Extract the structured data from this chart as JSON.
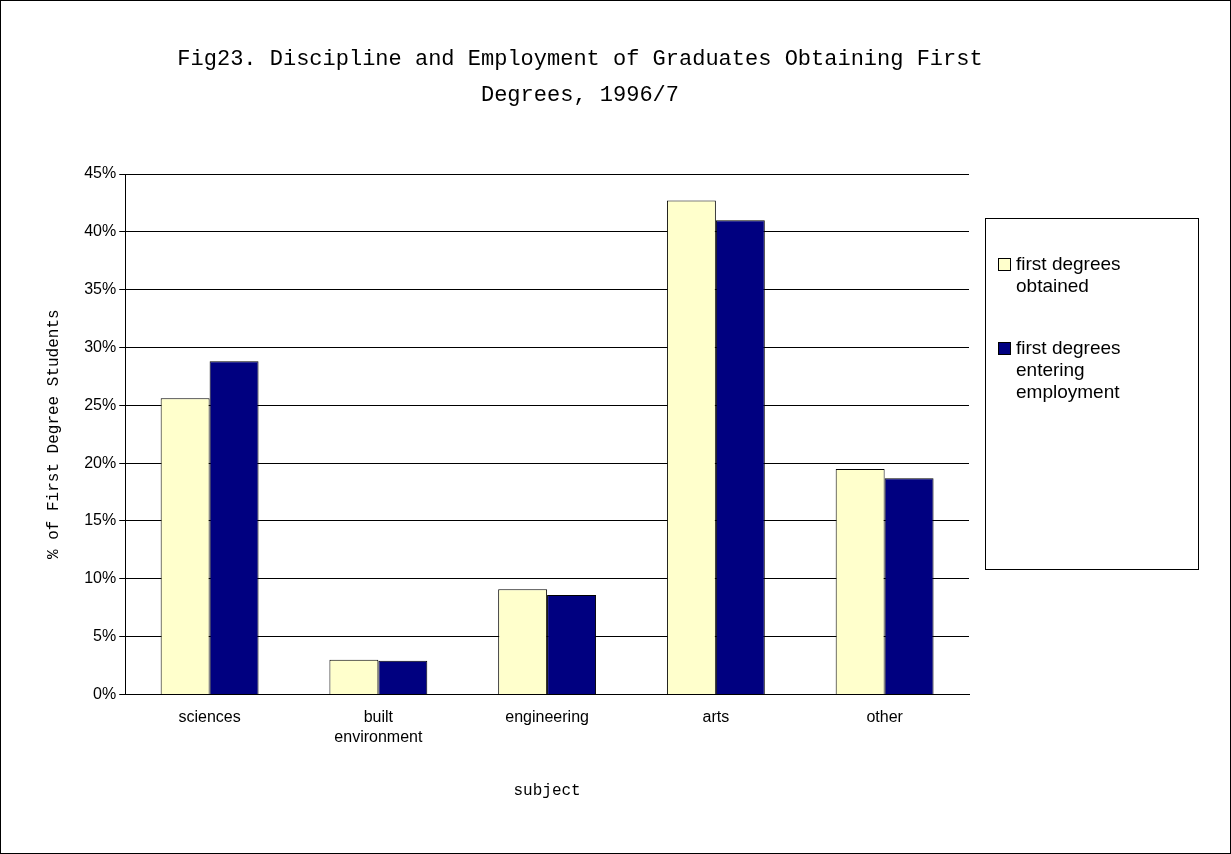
{
  "chart_data": {
    "type": "bar",
    "title": "Fig23. Discipline and Employment of Graduates Obtaining First Degrees, 1996/7",
    "xlabel": "subject",
    "ylabel": "% of First Degree Students",
    "categories": [
      "sciences",
      "built environment",
      "engineering",
      "arts",
      "other"
    ],
    "series": [
      {
        "name": "first degrees obtained",
        "color": "#ffffcc",
        "values": [
          25.6,
          3.0,
          9.1,
          42.7,
          19.5
        ]
      },
      {
        "name": "first degrees entering employment",
        "color": "#000080",
        "values": [
          28.8,
          2.9,
          8.6,
          41.0,
          18.7
        ]
      }
    ],
    "ylim": [
      0,
      45
    ],
    "yticks": [
      {
        "value": 0,
        "label": "0%"
      },
      {
        "value": 5,
        "label": "5%"
      },
      {
        "value": 10,
        "label": "10%"
      },
      {
        "value": 15,
        "label": "15%"
      },
      {
        "value": 20,
        "label": "20%"
      },
      {
        "value": 25,
        "label": "25%"
      },
      {
        "value": 30,
        "label": "30%"
      },
      {
        "value": 35,
        "label": "35%"
      },
      {
        "value": 40,
        "label": "40%"
      },
      {
        "value": 45,
        "label": "45%"
      }
    ],
    "grid": "y",
    "legend": "right"
  }
}
